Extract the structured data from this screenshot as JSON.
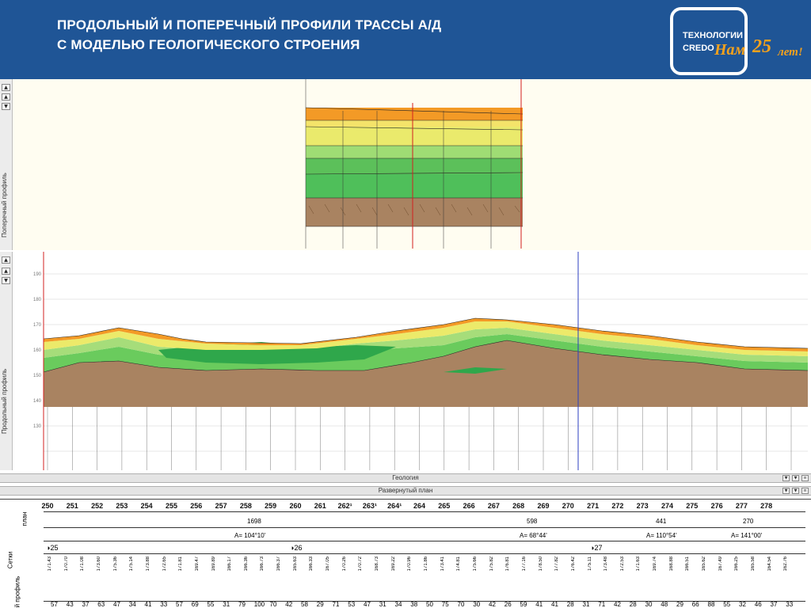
{
  "header": {
    "title_line1": "ПРОДОЛЬНЫЙ  И  ПОПЕРЕЧНЫЙ  ПРОФИЛИ ТРАССЫ А/Д",
    "title_line2": "С МОДЕЛЬЮ  ГЕОЛОГИЧЕСКОГО СТРОЕНИЯ",
    "logo_line1": "ТЕХНОЛОГИИ",
    "logo_line2": "CREDO",
    "logo_nam": "Нам",
    "logo_25": "25",
    "logo_let": "лет!"
  },
  "cross_section": {
    "side_label": "Поперечный профиль",
    "layer_colors": [
      "#f39a26",
      "#f1e86f",
      "#e8ea6a",
      "#9fdc74",
      "#4fbf5a",
      "#5bc455",
      "#a98361"
    ]
  },
  "long_profile": {
    "side_label": "Продольный профиль",
    "elevation_ticks": [
      "190",
      "180",
      "170",
      "160",
      "150",
      "140",
      "130"
    ]
  },
  "panels": {
    "geology_label": "Геология",
    "plan_label": "Развернутый план"
  },
  "grid_labels": {
    "plan_label": "план",
    "sections_label": "Сетки",
    "profile_label": "й профиль"
  },
  "pickets": [
    "250",
    "251",
    "252",
    "253",
    "254",
    "255",
    "256",
    "257",
    "258",
    "259",
    "260",
    "261",
    "262¹",
    "263¹",
    "264¹",
    "264",
    "265",
    "266",
    "267",
    "268",
    "269",
    "270",
    "271",
    "272",
    "273",
    "274",
    "275",
    "276",
    "277",
    "278"
  ],
  "plan": {
    "segment_lengths": [
      "1698",
      "598",
      "441",
      "270"
    ],
    "angles": [
      "А= 104°10'",
      "А= 68°44'",
      "А= 110°54'",
      "А= 141°00'"
    ],
    "curves": [
      "25",
      "26",
      "27"
    ]
  },
  "distances": [
    "57",
    "43",
    "37",
    "63",
    "47",
    "34",
    "41",
    "33",
    "57",
    "69",
    "55",
    "31",
    "79",
    "100",
    "70",
    "42",
    "58",
    "29",
    "71",
    "53",
    "47",
    "31",
    "34",
    "38",
    "50",
    "75",
    "70",
    "30",
    "42",
    "26",
    "59",
    "41",
    "41",
    "28",
    "31",
    "71",
    "42",
    "28",
    "30",
    "48",
    "29",
    "66",
    "88",
    "55",
    "32",
    "46",
    "37",
    "33"
  ],
  "elevations": [
    "171.43",
    "170.70",
    "171.08",
    "173.60",
    "175.36",
    "175.14",
    "173.88",
    "172.65",
    "171.81",
    "169.47",
    "169.89",
    "166.17",
    "166.36",
    "166.73",
    "166.37",
    "165.63",
    "166.33",
    "167.05",
    "170.26",
    "170.72",
    "168.73",
    "169.22",
    "170.96",
    "171.86",
    "173.41",
    "174.81",
    "175.66",
    "175.82",
    "176.81",
    "177.16",
    "178.50",
    "177.82",
    "176.42",
    "175.11",
    "173.48",
    "172.53",
    "171.63",
    "169.74",
    "168.88",
    "166.51",
    "165.62",
    "167.49",
    "166.25",
    "165.58",
    "164.54",
    "162.76"
  ]
}
